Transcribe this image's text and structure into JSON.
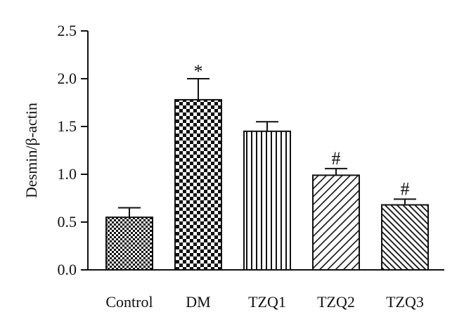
{
  "chart_data": {
    "type": "bar",
    "title": "",
    "xlabel": "",
    "ylabel": "Desmin/β-actin",
    "ylim": [
      0,
      2.5
    ],
    "yticks": [
      "0.0",
      "0.5",
      "1.0",
      "1.5",
      "2.0",
      "2.5"
    ],
    "categories": [
      "Control",
      "DM",
      "TZQ1",
      "TZQ2",
      "TZQ3"
    ],
    "values": [
      0.55,
      1.78,
      1.45,
      0.99,
      0.68
    ],
    "errors": [
      0.1,
      0.22,
      0.1,
      0.07,
      0.06
    ],
    "patterns": [
      "fine-checker",
      "checker",
      "vertical-lines",
      "diagonal-lines",
      "dense-diagonal-lines"
    ],
    "annotations": [
      "",
      "*",
      "",
      "#",
      "#"
    ],
    "grid": false,
    "legend": "none"
  }
}
